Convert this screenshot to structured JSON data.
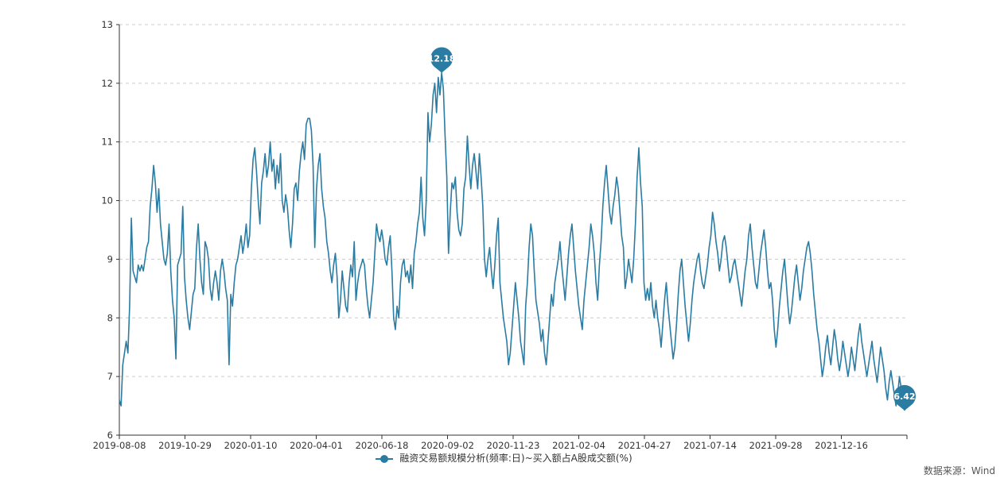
{
  "chart_data": {
    "type": "line",
    "title": "",
    "xlabel": "",
    "ylabel": "",
    "ylim": [
      6,
      13
    ],
    "y_ticks": [
      6,
      7,
      8,
      9,
      10,
      11,
      12,
      13
    ],
    "x_tick_labels": [
      "2019-08-08",
      "2019-10-29",
      "2020-01-10",
      "2020-04-01",
      "2020-06-18",
      "2020-09-02",
      "2020-11-23",
      "2021-02-04",
      "2021-04-27",
      "2021-07-14",
      "2021-09-28",
      "2021-12-16"
    ],
    "grid": true,
    "legend_position": "bottom",
    "colors": {
      "line": "#2a7ca3",
      "grid": "#cccccc",
      "axis": "#333333"
    },
    "series": [
      {
        "name": "融资交易额规模分析(频率:日)~买入额占A股成交额(%)",
        "x_range": [
          "2019-08-08",
          "2022-01-28"
        ],
        "values": [
          6.6,
          6.5,
          7.2,
          7.4,
          7.6,
          7.4,
          8.2,
          9.7,
          8.8,
          8.7,
          8.6,
          8.9,
          8.8,
          8.9,
          8.8,
          9.0,
          9.2,
          9.3,
          9.9,
          10.2,
          10.6,
          10.3,
          9.8,
          10.2,
          9.6,
          9.3,
          9.0,
          8.9,
          9.1,
          9.6,
          8.8,
          8.3,
          8.0,
          7.3,
          8.9,
          9.0,
          9.1,
          9.9,
          8.7,
          8.3,
          8.0,
          7.8,
          8.1,
          8.4,
          8.5,
          9.2,
          9.6,
          9.0,
          8.6,
          8.4,
          9.3,
          9.2,
          9.0,
          8.5,
          8.3,
          8.6,
          8.8,
          8.6,
          8.3,
          8.8,
          9.0,
          8.8,
          8.5,
          8.3,
          7.2,
          8.4,
          8.2,
          8.6,
          8.9,
          9.0,
          9.2,
          9.4,
          9.1,
          9.3,
          9.6,
          9.2,
          9.4,
          10.2,
          10.7,
          10.9,
          10.5,
          10.0,
          9.6,
          10.3,
          10.5,
          10.8,
          10.4,
          10.6,
          11.0,
          10.5,
          10.7,
          10.2,
          10.6,
          10.3,
          10.8,
          10.0,
          9.8,
          10.1,
          9.9,
          9.5,
          9.2,
          9.6,
          10.2,
          10.3,
          10.0,
          10.5,
          10.8,
          11.0,
          10.7,
          11.3,
          11.4,
          11.4,
          11.2,
          10.6,
          9.2,
          10.2,
          10.6,
          10.8,
          10.2,
          9.9,
          9.7,
          9.3,
          9.1,
          8.8,
          8.6,
          8.9,
          9.1,
          8.7,
          8.0,
          8.3,
          8.8,
          8.5,
          8.2,
          8.1,
          8.6,
          8.9,
          8.7,
          9.3,
          8.3,
          8.6,
          8.8,
          8.9,
          9.0,
          8.9,
          8.5,
          8.2,
          8.0,
          8.3,
          8.6,
          9.1,
          9.6,
          9.4,
          9.3,
          9.5,
          9.3,
          9.0,
          8.9,
          9.2,
          9.4,
          8.8,
          8.0,
          7.8,
          8.2,
          8.0,
          8.6,
          8.9,
          9.0,
          8.7,
          8.8,
          8.6,
          8.9,
          8.5,
          9.1,
          9.3,
          9.6,
          9.8,
          10.4,
          9.7,
          9.4,
          10.0,
          11.5,
          11.0,
          11.3,
          11.8,
          12.0,
          11.5,
          12.1,
          11.8,
          12.18,
          11.9,
          11.1,
          10.4,
          9.1,
          9.8,
          10.3,
          10.2,
          10.4,
          9.8,
          9.5,
          9.4,
          9.6,
          10.2,
          10.4,
          11.1,
          10.6,
          10.2,
          10.6,
          10.8,
          10.5,
          10.2,
          10.8,
          10.4,
          9.9,
          9.0,
          8.7,
          9.0,
          9.2,
          8.8,
          8.5,
          8.9,
          9.4,
          9.7,
          8.6,
          8.3,
          8.0,
          7.8,
          7.6,
          7.2,
          7.4,
          7.8,
          8.2,
          8.6,
          8.3,
          8.0,
          7.6,
          7.4,
          7.2,
          8.2,
          8.6,
          9.2,
          9.6,
          9.4,
          8.8,
          8.3,
          8.1,
          7.9,
          7.6,
          7.8,
          7.4,
          7.2,
          7.6,
          8.0,
          8.4,
          8.2,
          8.6,
          8.8,
          9.0,
          9.3,
          8.9,
          8.6,
          8.3,
          8.7,
          9.1,
          9.4,
          9.6,
          9.2,
          8.8,
          8.5,
          8.2,
          8.0,
          7.8,
          8.3,
          8.6,
          8.9,
          9.2,
          9.6,
          9.4,
          9.1,
          8.6,
          8.3,
          8.9,
          9.3,
          9.9,
          10.3,
          10.6,
          10.2,
          9.8,
          9.6,
          9.9,
          10.1,
          10.4,
          10.2,
          9.8,
          9.4,
          9.2,
          8.5,
          8.7,
          9.0,
          8.8,
          8.6,
          9.0,
          9.6,
          10.4,
          10.9,
          10.3,
          9.9,
          8.6,
          8.3,
          8.5,
          8.3,
          8.6,
          8.2,
          8.0,
          8.3,
          8.0,
          7.8,
          7.5,
          7.9,
          8.3,
          8.6,
          8.2,
          7.9,
          7.6,
          7.3,
          7.5,
          7.9,
          8.4,
          8.8,
          9.0,
          8.6,
          8.2,
          7.9,
          7.6,
          7.9,
          8.3,
          8.6,
          8.8,
          9.0,
          9.1,
          8.8,
          8.6,
          8.5,
          8.7,
          8.9,
          9.2,
          9.4,
          9.8,
          9.6,
          9.3,
          9.1,
          8.8,
          9.0,
          9.3,
          9.4,
          9.2,
          8.9,
          8.6,
          8.7,
          8.9,
          9.0,
          8.8,
          8.6,
          8.4,
          8.2,
          8.5,
          8.8,
          9.0,
          9.4,
          9.6,
          9.2,
          8.9,
          8.6,
          8.5,
          8.8,
          9.1,
          9.3,
          9.5,
          9.2,
          8.8,
          8.5,
          8.6,
          8.3,
          7.8,
          7.5,
          7.8,
          8.2,
          8.5,
          8.8,
          9.0,
          8.6,
          8.2,
          7.9,
          8.1,
          8.4,
          8.7,
          8.9,
          8.6,
          8.3,
          8.5,
          8.8,
          9.0,
          9.2,
          9.3,
          9.1,
          8.8,
          8.4,
          8.1,
          7.8,
          7.6,
          7.3,
          7.0,
          7.2,
          7.5,
          7.7,
          7.4,
          7.2,
          7.5,
          7.8,
          7.6,
          7.3,
          7.1,
          7.3,
          7.6,
          7.4,
          7.2,
          7.0,
          7.2,
          7.5,
          7.3,
          7.1,
          7.4,
          7.7,
          7.9,
          7.6,
          7.4,
          7.2,
          7.0,
          7.2,
          7.4,
          7.6,
          7.3,
          7.1,
          6.9,
          7.2,
          7.5,
          7.3,
          7.1,
          6.8,
          6.6,
          6.9,
          7.1,
          6.9,
          6.7,
          6.5,
          6.7,
          7.0,
          6.8,
          6.6,
          6.42
        ]
      }
    ],
    "markers": [
      {
        "label": "12.18",
        "value": 12.18,
        "type": "max"
      },
      {
        "label": "6.42",
        "value": 6.42,
        "type": "min"
      }
    ]
  },
  "legend": {
    "label": "融资交易额规模分析(频率:日)~买入额占A股成交额(%)"
  },
  "source": {
    "text": "数据来源：Wind"
  }
}
